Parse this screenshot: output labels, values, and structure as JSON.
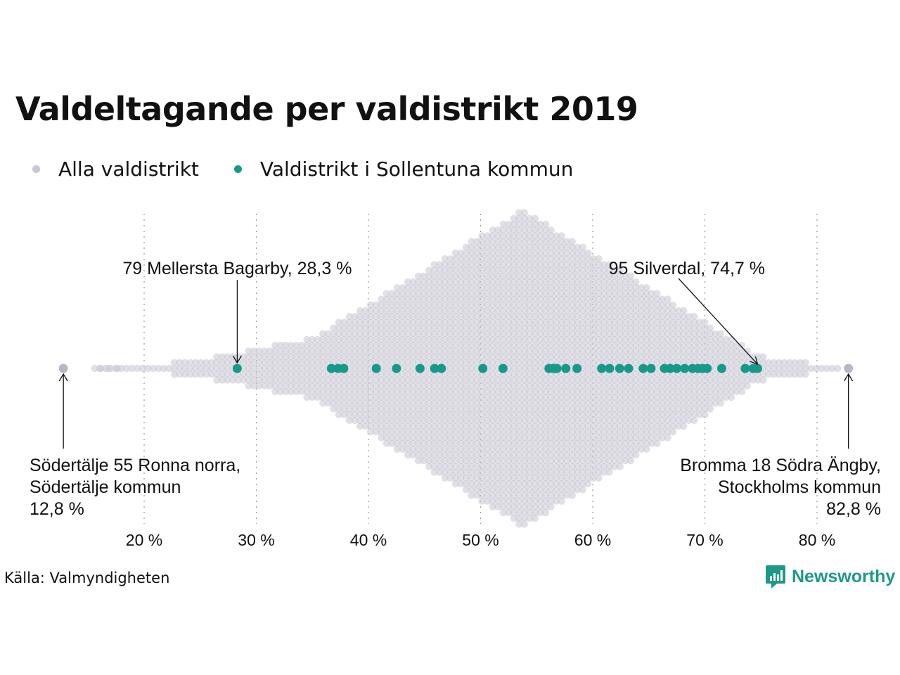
{
  "title": "Valdeltagande per valdistrikt 2019",
  "legend": {
    "all": "Alla valdistrikt",
    "local": "Valdistrikt i Sollentuna kommun"
  },
  "colors": {
    "all": "#c9c7d4",
    "local": "#17998a",
    "grid": "#999999",
    "brand": "#1d9a86"
  },
  "source": "Källa: Valmyndigheten",
  "brand": "Newsworthy",
  "chart_data": {
    "type": "scatter",
    "subtype": "beeswarm",
    "xlim": [
      10,
      85
    ],
    "x_ticks": [
      20,
      30,
      40,
      50,
      60,
      70,
      80
    ],
    "x_tick_labels": [
      "20 %",
      "30 %",
      "40 %",
      "50 %",
      "60 %",
      "70 %",
      "80 %"
    ],
    "grid": "vertical dotted",
    "all_districts_distribution": {
      "min": 12.8,
      "max": 82.8,
      "peak": 53.8,
      "note": "thousands of districts, densest around 54 %"
    },
    "series": [
      {
        "name": "Valdistrikt i Sollentuna kommun",
        "values": [
          28.3,
          36.7,
          37.3,
          37.8,
          40.7,
          42.5,
          44.6,
          45.9,
          46.5,
          50.2,
          52.0,
          56.1,
          56.5,
          56.8,
          56.6,
          57.6,
          58.6,
          60.8,
          61.5,
          62.4,
          63.2,
          64.5,
          65.2,
          66.4,
          66.9,
          67.5,
          68.2,
          68.9,
          69.4,
          69.8,
          70.2,
          71.5,
          73.6,
          74.3,
          74.7
        ]
      }
    ],
    "annotations": [
      {
        "label": "79 Mellersta Bagarby, 28,3 %",
        "value": 28.3
      },
      {
        "label": "95 Silverdal, 74,7 %",
        "value": 74.7
      },
      {
        "lines": [
          "Södertälje 55 Ronna norra,",
          "Södertälje kommun",
          "12,8 %"
        ],
        "value": 12.8
      },
      {
        "lines": [
          "Bromma 18 Södra Ängby,",
          "Stockholms kommun",
          "82,8 %"
        ],
        "value": 82.8
      }
    ]
  }
}
